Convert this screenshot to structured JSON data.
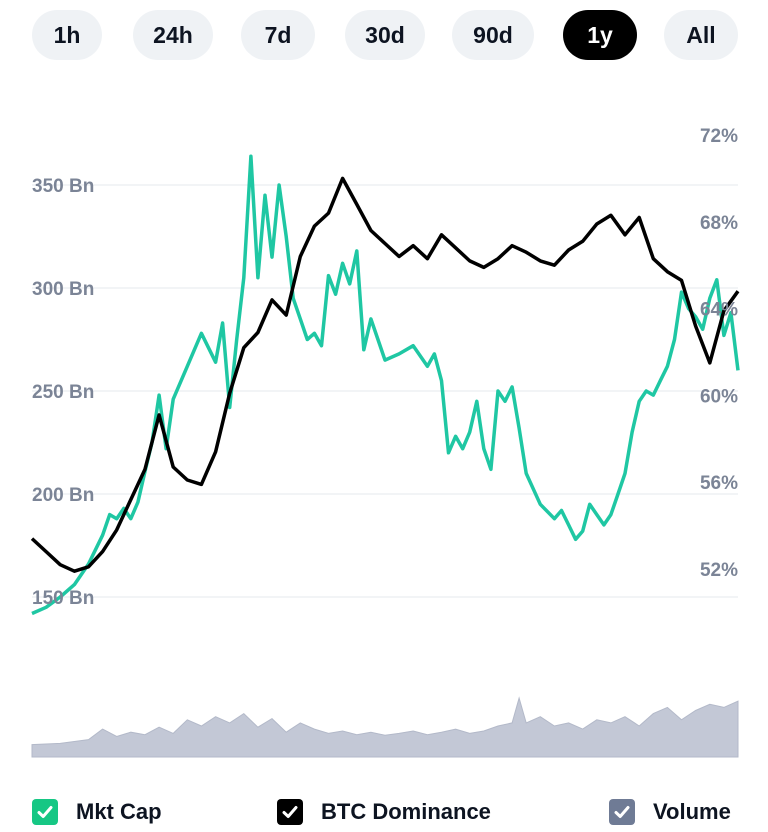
{
  "time_ranges": [
    {
      "label": "1h",
      "active": false
    },
    {
      "label": "24h",
      "active": false
    },
    {
      "label": "7d",
      "active": false
    },
    {
      "label": "30d",
      "active": false
    },
    {
      "label": "90d",
      "active": false
    },
    {
      "label": "1y",
      "active": true
    },
    {
      "label": "All",
      "active": false
    }
  ],
  "legend": [
    {
      "label": "Mkt Cap",
      "color": "#16c784",
      "checked": true
    },
    {
      "label": "BTC Dominance",
      "color": "#000000",
      "checked": true
    },
    {
      "label": "Volume",
      "color": "#6f7b95",
      "checked": true
    }
  ],
  "chart_data": {
    "type": "line",
    "left_axis": {
      "ticks": [
        "150 Bn",
        "200 Bn",
        "250 Bn",
        "300 Bn",
        "350 Bn"
      ],
      "tick_values": [
        150,
        200,
        250,
        300,
        350
      ],
      "range": [
        130,
        378
      ]
    },
    "right_axis": {
      "ticks": [
        "52%",
        "56%",
        "60%",
        "64%",
        "68%",
        "72%"
      ],
      "tick_values": [
        52,
        56,
        60,
        64,
        68,
        72
      ],
      "range": [
        48.8,
        74.5
      ]
    },
    "grid": true,
    "series": [
      {
        "name": "Mkt Cap",
        "axis": "left",
        "color": "#1fc7a3",
        "x": [
          0,
          2,
          4,
          6,
          8,
          10,
          11,
          12,
          13,
          14,
          15,
          16,
          17,
          18,
          19,
          20,
          22,
          24,
          26,
          27,
          28,
          29,
          30,
          31,
          32,
          33,
          34,
          35,
          36,
          37,
          38,
          39,
          40,
          41,
          42,
          43,
          44,
          45,
          46,
          47,
          48,
          50,
          52,
          54,
          56,
          57,
          58,
          59,
          60,
          61,
          62,
          63,
          64,
          65,
          66,
          67,
          68,
          69,
          70,
          72,
          74,
          75,
          76,
          77,
          78,
          79,
          80,
          81,
          82,
          83,
          84,
          85,
          86,
          87,
          88,
          89,
          90,
          91,
          92,
          93,
          94,
          95,
          96,
          97,
          98,
          99,
          100
        ],
        "y": [
          142,
          145,
          150,
          156,
          166,
          180,
          190,
          188,
          193,
          188,
          196,
          211,
          225,
          248,
          222,
          246,
          262,
          278,
          264,
          283,
          242,
          275,
          305,
          364,
          305,
          345,
          315,
          350,
          325,
          295,
          285,
          275,
          278,
          272,
          306,
          297,
          312,
          302,
          318,
          270,
          285,
          265,
          268,
          272,
          262,
          268,
          255,
          220,
          228,
          222,
          230,
          245,
          222,
          212,
          250,
          245,
          252,
          232,
          210,
          195,
          188,
          192,
          185,
          178,
          182,
          195,
          190,
          185,
          190,
          200,
          210,
          230,
          245,
          250,
          248,
          255,
          262,
          275,
          298,
          290,
          286,
          280,
          295,
          304,
          277,
          288,
          260
        ]
      },
      {
        "name": "BTC Dominance",
        "axis": "right",
        "color": "#000000",
        "x": [
          0,
          2,
          4,
          6,
          8,
          10,
          12,
          14,
          16,
          18,
          20,
          22,
          24,
          26,
          28,
          30,
          32,
          34,
          36,
          38,
          40,
          42,
          44,
          46,
          48,
          50,
          52,
          54,
          56,
          58,
          60,
          62,
          64,
          66,
          68,
          70,
          72,
          74,
          76,
          78,
          80,
          82,
          84,
          86,
          88,
          90,
          92,
          94,
          96,
          98,
          100
        ],
        "y": [
          53.4,
          52.8,
          52.2,
          51.9,
          52.1,
          52.8,
          53.8,
          55.2,
          56.6,
          59.1,
          56.7,
          56.1,
          55.9,
          57.4,
          60.1,
          62.2,
          62.9,
          64.4,
          63.7,
          66.4,
          67.8,
          68.4,
          70.0,
          68.8,
          67.6,
          67.0,
          66.4,
          66.9,
          66.3,
          67.4,
          66.8,
          66.2,
          65.9,
          66.3,
          66.9,
          66.6,
          66.2,
          66.0,
          66.7,
          67.1,
          67.9,
          68.3,
          67.4,
          68.2,
          66.3,
          65.7,
          65.3,
          63.2,
          61.5,
          63.9,
          64.8
        ]
      },
      {
        "name": "Volume",
        "axis": "volume",
        "color": "#bfc5d3",
        "x": [
          0,
          4,
          8,
          10,
          12,
          14,
          16,
          18,
          20,
          22,
          24,
          26,
          28,
          30,
          32,
          34,
          36,
          38,
          40,
          42,
          44,
          46,
          48,
          50,
          52,
          54,
          56,
          58,
          60,
          62,
          64,
          66,
          68,
          69,
          70,
          72,
          74,
          76,
          78,
          80,
          82,
          84,
          86,
          88,
          90,
          92,
          94,
          96,
          98,
          100
        ],
        "y": [
          0.2,
          0.22,
          0.28,
          0.45,
          0.33,
          0.4,
          0.36,
          0.48,
          0.38,
          0.6,
          0.5,
          0.65,
          0.55,
          0.7,
          0.48,
          0.62,
          0.4,
          0.55,
          0.45,
          0.38,
          0.42,
          0.36,
          0.4,
          0.35,
          0.38,
          0.42,
          0.36,
          0.4,
          0.45,
          0.38,
          0.42,
          0.5,
          0.55,
          0.95,
          0.55,
          0.65,
          0.5,
          0.55,
          0.45,
          0.6,
          0.55,
          0.65,
          0.5,
          0.7,
          0.8,
          0.6,
          0.75,
          0.85,
          0.8,
          0.9
        ]
      }
    ]
  }
}
